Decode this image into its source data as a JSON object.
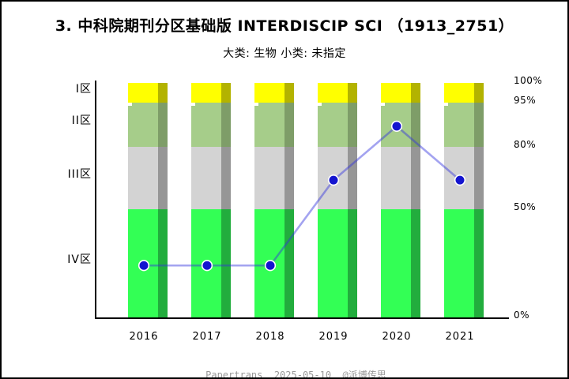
{
  "header": {
    "title": "3. 中科院期刊分区基础版 INTERDISCIP SCI （1913_2751）",
    "subtitle": "大类: 生物 小类: 未指定"
  },
  "footer": {
    "brand": "Papertrans",
    "date": "2025-05-10",
    "handle": "@派博传思"
  },
  "chart_data": {
    "type": "bar",
    "subtype": "stacked-partition-zone-bars-with-percentile-line",
    "title": "3. 中科院期刊分区基础版 INTERDISCIP SCI （1913_2751）",
    "subtitle": "大类: 生物 小类: 未指定",
    "categories": [
      "2016",
      "2017",
      "2018",
      "2019",
      "2020",
      "2021"
    ],
    "zones": [
      {
        "label": "I区",
        "from_pct": 95,
        "to_pct": 100,
        "color": "#ffff00",
        "shadow_color": "#b3b300"
      },
      {
        "label": "II区",
        "from_pct": 80,
        "to_pct": 95,
        "color": "#a6cd8a",
        "shadow_color": "#7e9d68"
      },
      {
        "label": "III区",
        "from_pct": 50,
        "to_pct": 80,
        "color": "#d3d3d3",
        "shadow_color": "#969696"
      },
      {
        "label": "IV区",
        "from_pct": 0,
        "to_pct": 50,
        "color": "#33ff55",
        "shadow_color": "#22ad3d"
      }
    ],
    "bars_note": "every year shows the identical full 0-100% zone stack",
    "line_series": {
      "values_pct": [
        24,
        24,
        24,
        64,
        87,
        64
      ],
      "color": "rgba(51,51,221,0.45)",
      "marker_color": "#1414cf"
    },
    "y_ticks": [
      "100%",
      "95%",
      "80%",
      "50%",
      "0%"
    ],
    "ylim": [
      0,
      100
    ],
    "legend": "none",
    "grid": "off"
  }
}
